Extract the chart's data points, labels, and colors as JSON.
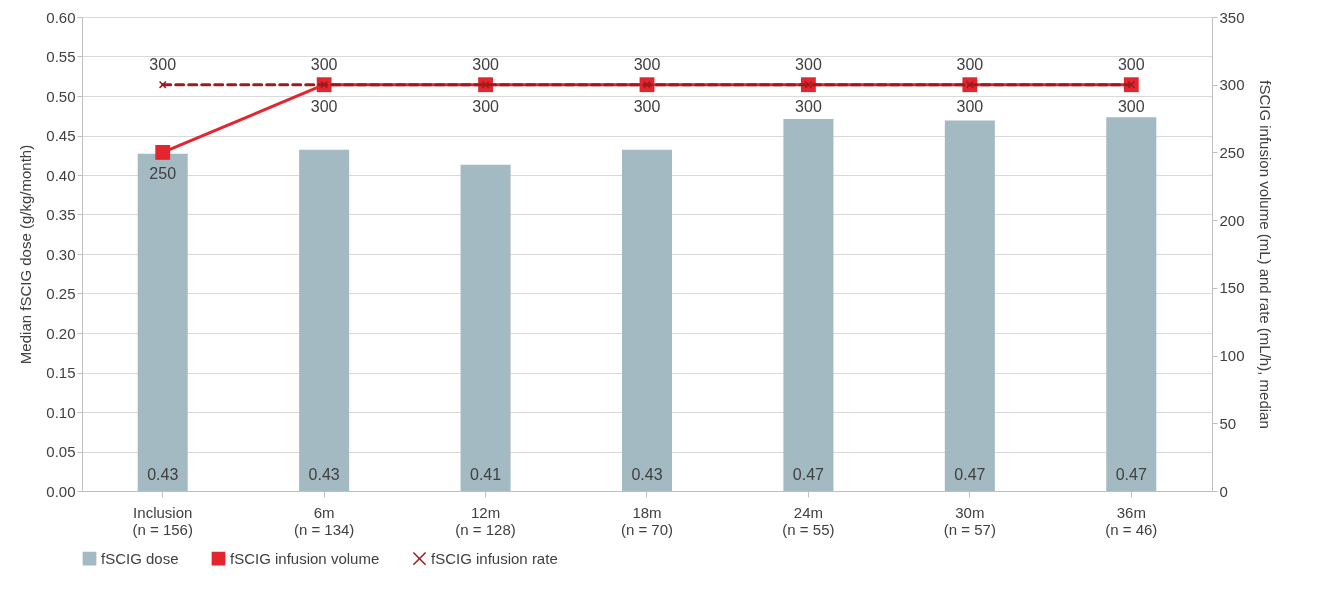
{
  "chart_data": {
    "type": "bar",
    "categories": [
      "Inclusion\n(n = 156)",
      "6m\n(n = 134)",
      "12m\n(n = 128)",
      "18m\n(n = 70)",
      "24m\n(n = 55)",
      "30m\n(n = 57)",
      "36m\n(n = 46)"
    ],
    "ylabel": "Median fSCIG dose (g/kg/month)",
    "y2label": "fSCIG infusion volume (mL) and rate (mL/h), median",
    "ylim": [
      0,
      0.6
    ],
    "yticks": [
      {
        "value": 0,
        "label": "0.00"
      },
      {
        "value": 0.05,
        "label": "0.05"
      },
      {
        "value": 0.1,
        "label": "0.10"
      },
      {
        "value": 0.15,
        "label": "0.15"
      },
      {
        "value": 0.2,
        "label": "0.20"
      },
      {
        "value": 0.25,
        "label": "0.25"
      },
      {
        "value": 0.3,
        "label": "0.30"
      },
      {
        "value": 0.35,
        "label": "0.35"
      },
      {
        "value": 0.4,
        "label": "0.40"
      },
      {
        "value": 0.45,
        "label": "0.45"
      },
      {
        "value": 0.5,
        "label": "0.50"
      },
      {
        "value": 0.55,
        "label": "0.55"
      },
      {
        "value": 0.6,
        "label": "0.60"
      }
    ],
    "y2lim": [
      0,
      350
    ],
    "y2ticks": [
      0,
      50,
      100,
      150,
      200,
      250,
      300,
      350
    ],
    "grid": "y",
    "legend": "bottom",
    "series": [
      {
        "name": "fSCIG dose",
        "type": "bar",
        "color": "#a3bac3",
        "values": [
          0.427,
          0.432,
          0.413,
          0.432,
          0.471,
          0.469,
          0.473
        ],
        "value_labels": [
          "0.43",
          "0.43",
          "0.41",
          "0.43",
          "0.47",
          "0.47",
          "0.47"
        ]
      },
      {
        "name": "fSCIG infusion volume",
        "type": "line",
        "axis": "y2",
        "color": "#e3262e",
        "marker": "square",
        "line_style": "solid",
        "values": [
          250,
          300,
          300,
          300,
          300,
          300,
          300
        ],
        "data_labels": true
      },
      {
        "name": "fSCIG infusion rate",
        "type": "line",
        "axis": "y2",
        "color": "#9b1c1f",
        "marker": "cross",
        "line_style": "dashed",
        "values": [
          300,
          300,
          300,
          300,
          300,
          300,
          300
        ],
        "data_labels": true
      }
    ]
  }
}
